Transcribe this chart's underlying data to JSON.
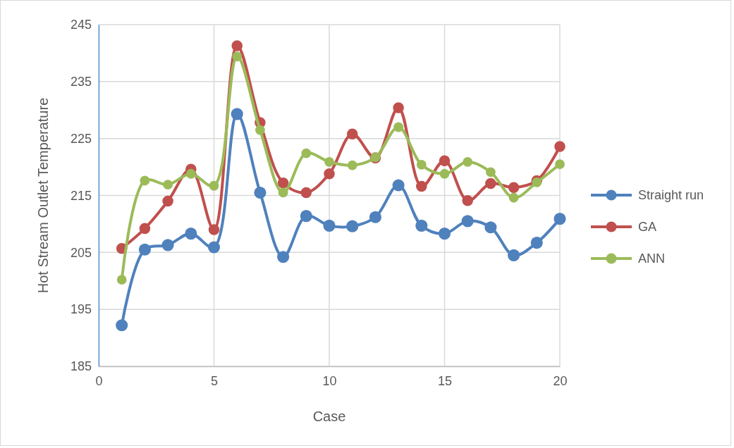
{
  "chart_data": {
    "type": "line",
    "xlabel": "Case",
    "ylabel": "Hot Stream Outlet Temperature",
    "x": [
      1,
      2,
      3,
      4,
      5,
      6,
      7,
      8,
      9,
      10,
      11,
      12,
      13,
      14,
      15,
      16,
      17,
      18,
      19,
      20
    ],
    "xlim": [
      0,
      20
    ],
    "xticks": [
      0,
      5,
      10,
      15,
      20
    ],
    "ylim": [
      185,
      245
    ],
    "yticks": [
      185,
      195,
      205,
      215,
      225,
      235,
      245
    ],
    "grid": true,
    "legend": "right",
    "marker": "circle",
    "line_style": "solid",
    "series": [
      {
        "name": "Straight run",
        "color": "#4f81bd",
        "values": [
          192.2,
          205.5,
          206.3,
          208.3,
          205.9,
          229.3,
          215.5,
          204.2,
          211.4,
          209.7,
          209.6,
          211.2,
          216.8,
          209.7,
          208.3,
          210.5,
          209.4,
          204.5,
          206.7,
          210.9
        ]
      },
      {
        "name": "GA",
        "color": "#c0504d",
        "values": [
          205.7,
          209.2,
          214.0,
          219.6,
          209.0,
          241.3,
          227.8,
          217.2,
          215.5,
          218.8,
          225.8,
          221.6,
          230.4,
          216.6,
          221.1,
          214.1,
          217.1,
          216.4,
          217.6,
          223.6
        ]
      },
      {
        "name": "ANN",
        "color": "#9bbb59",
        "values": [
          200.2,
          217.6,
          216.9,
          218.8,
          216.7,
          239.4,
          226.5,
          215.5,
          222.4,
          220.9,
          220.3,
          221.7,
          227.0,
          220.4,
          218.8,
          220.9,
          219.1,
          214.6,
          217.3,
          220.5
        ]
      }
    ]
  }
}
